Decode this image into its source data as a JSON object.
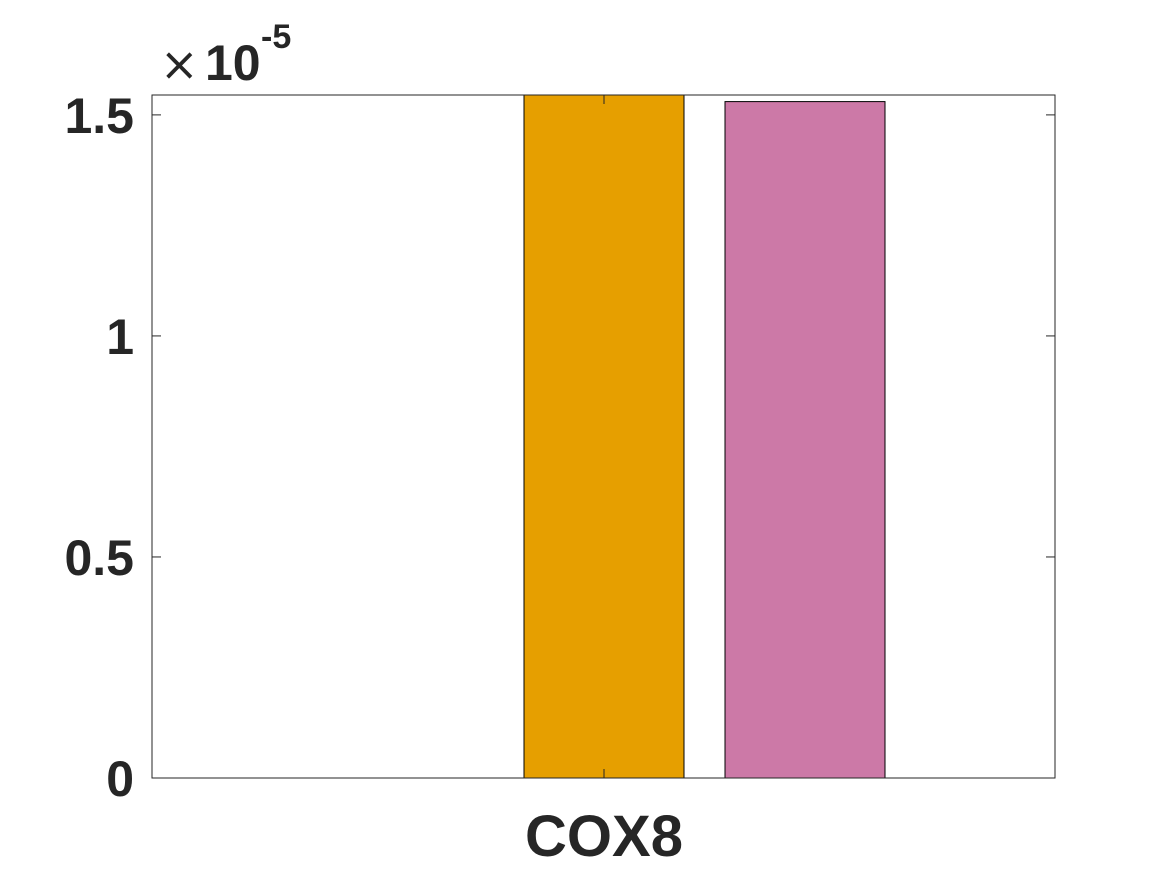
{
  "chart_data": {
    "type": "bar",
    "categories": [
      "COX8"
    ],
    "series": [
      {
        "values": [
          0
        ],
        "color": "#0072BD"
      },
      {
        "values": [
          1.545e-05
        ],
        "color": "#E69F00"
      },
      {
        "values": [
          1.53e-05
        ],
        "color": "#CC79A7"
      }
    ],
    "ylim": [
      0,
      1.545e-05
    ],
    "yticks": [
      0,
      5e-06,
      1e-05,
      1.5e-05
    ],
    "ytick_labels": [
      "0",
      "0.5",
      "1",
      "1.5"
    ],
    "y_exponent": {
      "base": "10",
      "power": "-5"
    },
    "title": "",
    "xlabel": "",
    "ylabel": "",
    "grid": false,
    "legend": "none"
  }
}
